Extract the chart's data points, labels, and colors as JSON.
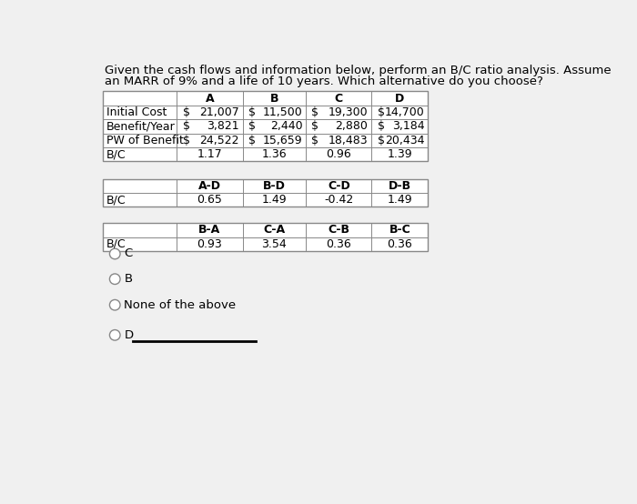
{
  "title_line1": "Given the cash flows and information below, perform an B/C ratio analysis. Assume",
  "title_line2": "an MARR of 9% and a life of 10 years. Which alternative do you choose?",
  "table1": {
    "col_headers": [
      "",
      "A",
      "B",
      "C",
      "D"
    ],
    "rows": [
      [
        "Initial Cost",
        [
          "$",
          "21,007"
        ],
        [
          "$",
          "11,500"
        ],
        [
          "$",
          "19,300"
        ],
        [
          "$",
          "14,700"
        ]
      ],
      [
        "Benefit/Year",
        [
          "$",
          "3,821"
        ],
        [
          "$",
          "2,440"
        ],
        [
          "$",
          "2,880"
        ],
        [
          "$",
          "3,184"
        ]
      ],
      [
        "PW of Benefit",
        [
          "$",
          "24,522"
        ],
        [
          "$",
          "15,659"
        ],
        [
          "$",
          "18,483"
        ],
        [
          "$",
          "20,434"
        ]
      ],
      [
        "B/C",
        "1.17",
        "1.36",
        "0.96",
        "1.39"
      ]
    ]
  },
  "table2": {
    "col_headers": [
      "",
      "A-D",
      "B-D",
      "C-D",
      "D-B"
    ],
    "rows": [
      [
        "B/C",
        "0.65",
        "1.49",
        "-0.42",
        "1.49"
      ]
    ]
  },
  "table3": {
    "col_headers": [
      "",
      "B-A",
      "C-A",
      "C-B",
      "B-C"
    ],
    "rows": [
      [
        "B/C",
        "0.93",
        "3.54",
        "0.36",
        "0.36"
      ]
    ]
  },
  "options": [
    "C",
    "B",
    "None of the above",
    "D"
  ],
  "bg_color": "#f0f0f0",
  "table_bg": "#ffffff",
  "text_color": "#000000",
  "font_size": 9.0,
  "header_font_size": 9.0
}
